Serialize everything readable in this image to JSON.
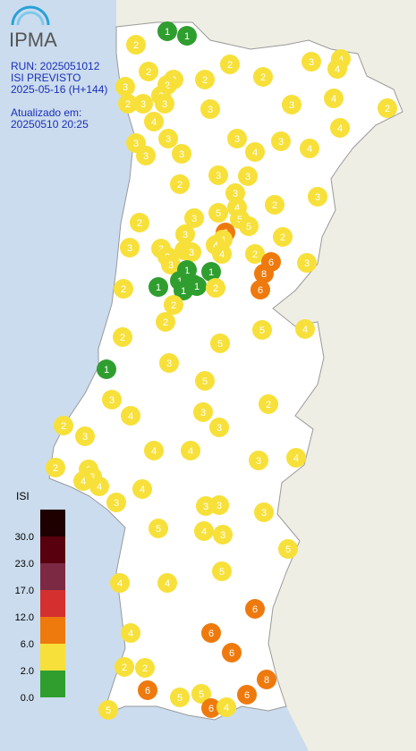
{
  "logo": "IPMA",
  "info": {
    "run": "RUN: 2025051012",
    "product": "ISI PREVISTO",
    "date": "2025-05-16 (H+144)",
    "updated_label": "Atualizado em:",
    "updated": "20250510 20:25"
  },
  "legend": {
    "title": "ISI",
    "ticks": [
      {
        "value": 0,
        "label": "0.0"
      },
      {
        "value": 2,
        "label": "2.0"
      },
      {
        "value": 6,
        "label": "6.0"
      },
      {
        "value": 12,
        "label": "12.0"
      },
      {
        "value": 17,
        "label": "17.0"
      },
      {
        "value": 23,
        "label": "23.0"
      },
      {
        "value": 30,
        "label": "30.0"
      }
    ],
    "colors": [
      "#2f9e2f",
      "#f7e03a",
      "#ee7a0e",
      "#d3302f",
      "#7c2a44",
      "#58000e",
      "#1e0000"
    ]
  },
  "markers": [
    1,
    1,
    2,
    3,
    4,
    4,
    2,
    2,
    2,
    2,
    2,
    3,
    3,
    2,
    2,
    3,
    3,
    3,
    4,
    2,
    4,
    3,
    4,
    3,
    3,
    3,
    3,
    3,
    3,
    4,
    4,
    3,
    3,
    2,
    3,
    3,
    2,
    2,
    3,
    5,
    4,
    5,
    5,
    3,
    6,
    4,
    4,
    2,
    3,
    3,
    3,
    3,
    3,
    3,
    4,
    2,
    6,
    8,
    3,
    1,
    1,
    1,
    1,
    1,
    1,
    1,
    2,
    2,
    6,
    2,
    2,
    2,
    5,
    5,
    4,
    1,
    3,
    5,
    3,
    4,
    3,
    2,
    2,
    3,
    3,
    4,
    4,
    3,
    4,
    2,
    3,
    3,
    4,
    4,
    4,
    3,
    3,
    3,
    3,
    5,
    4,
    3,
    5,
    5,
    4,
    4,
    6,
    4,
    6,
    6,
    2,
    2,
    8,
    6,
    6,
    5,
    5,
    6,
    4,
    5
  ]
}
